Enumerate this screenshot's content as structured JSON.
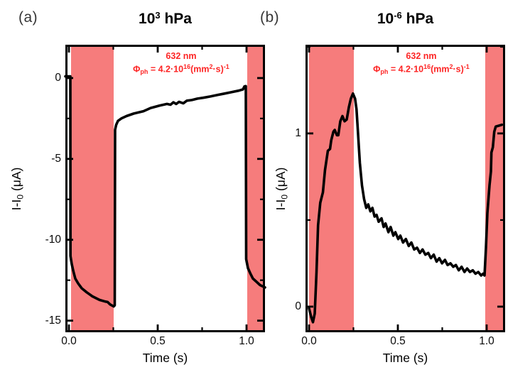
{
  "figure": {
    "background": "#ffffff",
    "panel_labels": [
      "(a)",
      "(b)"
    ]
  },
  "chart_data": [
    {
      "type": "line",
      "panel": "a",
      "title": {
        "base": "10",
        "exp": "3",
        "unit": " hPa"
      },
      "annotation": {
        "line1": "632 nm",
        "phi": "Φ",
        "phi_sub": "ph",
        "eq": " = 4.2·10",
        "exp": "16",
        "par": "(mm",
        "sq": "2",
        "dots": "·s)",
        "inv": "-1",
        "color": "#fd2525"
      },
      "xlabel": "Time (s)",
      "ylabel": {
        "main": "I-I",
        "sub": "0",
        "unit": " (μA)"
      },
      "xlim": [
        -0.02,
        1.104
      ],
      "ylim": [
        -15.72,
        2.06
      ],
      "grid": false,
      "legend": null,
      "xticks": [
        {
          "v": 0.0,
          "label": "0.0"
        },
        {
          "v": 0.5,
          "label": "0.5"
        },
        {
          "v": 1.0,
          "label": "1.0"
        }
      ],
      "xminor": [
        0.25,
        0.75
      ],
      "yticks": [
        {
          "v": 0,
          "label": "0"
        },
        {
          "v": -5,
          "label": "-5"
        },
        {
          "v": -10,
          "label": "-10"
        },
        {
          "v": -15,
          "label": "-15"
        }
      ],
      "yminor": [
        -2.5,
        -7.5,
        -12.5
      ],
      "band_color": "#f67c7c",
      "light_off_bands": [
        [
          0.012,
          0.252
        ],
        [
          1.004,
          1.104
        ]
      ],
      "line_color": "#000000",
      "series": [
        {
          "name": "photocurrent",
          "points": [
            [
              -0.02,
              0.1
            ],
            [
              0.008,
              0.1
            ],
            [
              0.009,
              -11.0
            ],
            [
              0.016,
              -11.5
            ],
            [
              0.024,
              -11.9
            ],
            [
              0.036,
              -12.4
            ],
            [
              0.052,
              -12.7
            ],
            [
              0.072,
              -13.0
            ],
            [
              0.1,
              -13.25
            ],
            [
              0.132,
              -13.5
            ],
            [
              0.172,
              -13.72
            ],
            [
              0.204,
              -13.82
            ],
            [
              0.218,
              -13.85
            ],
            [
              0.232,
              -14.0
            ],
            [
              0.252,
              -14.12
            ],
            [
              0.258,
              -14.05
            ],
            [
              0.26,
              -3.2
            ],
            [
              0.266,
              -2.9
            ],
            [
              0.276,
              -2.65
            ],
            [
              0.295,
              -2.5
            ],
            [
              0.324,
              -2.35
            ],
            [
              0.364,
              -2.2
            ],
            [
              0.42,
              -2.05
            ],
            [
              0.46,
              -1.85
            ],
            [
              0.512,
              -1.7
            ],
            [
              0.552,
              -1.6
            ],
            [
              0.572,
              -1.65
            ],
            [
              0.588,
              -1.5
            ],
            [
              0.604,
              -1.6
            ],
            [
              0.62,
              -1.47
            ],
            [
              0.644,
              -1.56
            ],
            [
              0.664,
              -1.4
            ],
            [
              0.692,
              -1.36
            ],
            [
              0.724,
              -1.27
            ],
            [
              0.756,
              -1.22
            ],
            [
              0.796,
              -1.14
            ],
            [
              0.836,
              -1.05
            ],
            [
              0.876,
              -0.96
            ],
            [
              0.916,
              -0.87
            ],
            [
              0.956,
              -0.78
            ],
            [
              0.98,
              -0.7
            ],
            [
              0.988,
              -0.52
            ],
            [
              0.996,
              -0.5
            ],
            [
              0.998,
              -11.2
            ],
            [
              1.008,
              -11.75
            ],
            [
              1.02,
              -12.05
            ],
            [
              1.036,
              -12.4
            ],
            [
              1.056,
              -12.6
            ],
            [
              1.076,
              -12.8
            ],
            [
              1.104,
              -12.95
            ]
          ]
        }
      ]
    },
    {
      "type": "line",
      "panel": "b",
      "title": {
        "base": "10",
        "exp": "-6",
        "unit": " hPa"
      },
      "annotation": {
        "line1": "632 nm",
        "phi": "Φ",
        "phi_sub": "ph",
        "eq": " = 4.2·10",
        "exp": "16",
        "par": "(mm",
        "sq": "2",
        "dots": "·s)",
        "inv": "-1",
        "color": "#fd2525"
      },
      "xlabel": "Time (s)",
      "ylabel": {
        "main": "I-I",
        "sub": "0",
        "unit": " (μA)"
      },
      "xlim": [
        -0.02,
        1.104
      ],
      "ylim": [
        -0.148,
        1.512
      ],
      "grid": false,
      "legend": null,
      "xticks": [
        {
          "v": 0.0,
          "label": "0.0"
        },
        {
          "v": 0.5,
          "label": "0.5"
        },
        {
          "v": 1.0,
          "label": "1.0"
        }
      ],
      "xminor": [
        0.25,
        0.75
      ],
      "yticks": [
        {
          "v": 0,
          "label": "0"
        },
        {
          "v": 1,
          "label": "1"
        }
      ],
      "yminor": [
        0.5,
        1.5
      ],
      "band_color": "#f67c7c",
      "light_off_bands": [
        [
          0.0,
          0.252
        ],
        [
          0.992,
          1.104
        ]
      ],
      "line_color": "#000000",
      "series": [
        {
          "name": "photocurrent",
          "points": [
            [
              0.0,
              -0.01
            ],
            [
              0.012,
              -0.06
            ],
            [
              0.022,
              -0.09
            ],
            [
              0.032,
              -0.04
            ],
            [
              0.042,
              0.2
            ],
            [
              0.051,
              0.47
            ],
            [
              0.063,
              0.6
            ],
            [
              0.078,
              0.66
            ],
            [
              0.09,
              0.79
            ],
            [
              0.106,
              0.9
            ],
            [
              0.118,
              0.91
            ],
            [
              0.125,
              0.96
            ],
            [
              0.137,
              1.01
            ],
            [
              0.145,
              1.02
            ],
            [
              0.157,
              0.99
            ],
            [
              0.165,
              0.99
            ],
            [
              0.176,
              1.07
            ],
            [
              0.188,
              1.1
            ],
            [
              0.2,
              1.07
            ],
            [
              0.212,
              1.08
            ],
            [
              0.224,
              1.15
            ],
            [
              0.235,
              1.2
            ],
            [
              0.247,
              1.23
            ],
            [
              0.259,
              1.2
            ],
            [
              0.267,
              1.14
            ],
            [
              0.275,
              1.01
            ],
            [
              0.286,
              0.83
            ],
            [
              0.298,
              0.7
            ],
            [
              0.31,
              0.62
            ],
            [
              0.322,
              0.57
            ],
            [
              0.333,
              0.59
            ],
            [
              0.345,
              0.55
            ],
            [
              0.357,
              0.57
            ],
            [
              0.369,
              0.52
            ],
            [
              0.38,
              0.53
            ],
            [
              0.392,
              0.49
            ],
            [
              0.408,
              0.51
            ],
            [
              0.42,
              0.46
            ],
            [
              0.431,
              0.48
            ],
            [
              0.447,
              0.43
            ],
            [
              0.459,
              0.46
            ],
            [
              0.475,
              0.41
            ],
            [
              0.486,
              0.43
            ],
            [
              0.502,
              0.39
            ],
            [
              0.514,
              0.41
            ],
            [
              0.529,
              0.37
            ],
            [
              0.545,
              0.39
            ],
            [
              0.561,
              0.35
            ],
            [
              0.576,
              0.37
            ],
            [
              0.592,
              0.33
            ],
            [
              0.608,
              0.34
            ],
            [
              0.624,
              0.31
            ],
            [
              0.639,
              0.33
            ],
            [
              0.655,
              0.3
            ],
            [
              0.671,
              0.31
            ],
            [
              0.686,
              0.28
            ],
            [
              0.702,
              0.3
            ],
            [
              0.718,
              0.26
            ],
            [
              0.733,
              0.28
            ],
            [
              0.749,
              0.25
            ],
            [
              0.765,
              0.27
            ],
            [
              0.78,
              0.24
            ],
            [
              0.796,
              0.25
            ],
            [
              0.812,
              0.23
            ],
            [
              0.827,
              0.24
            ],
            [
              0.843,
              0.21
            ],
            [
              0.859,
              0.23
            ],
            [
              0.875,
              0.2
            ],
            [
              0.89,
              0.22
            ],
            [
              0.906,
              0.2
            ],
            [
              0.922,
              0.21
            ],
            [
              0.937,
              0.19
            ],
            [
              0.953,
              0.2
            ],
            [
              0.969,
              0.18
            ],
            [
              0.98,
              0.19
            ],
            [
              0.988,
              0.18
            ],
            [
              0.996,
              0.34
            ],
            [
              1.004,
              0.54
            ],
            [
              1.016,
              0.7
            ],
            [
              1.024,
              0.78
            ],
            [
              1.027,
              0.89
            ],
            [
              1.035,
              0.92
            ],
            [
              1.043,
              1.01
            ],
            [
              1.051,
              1.04
            ],
            [
              1.071,
              1.045
            ],
            [
              1.086,
              1.05
            ]
          ]
        }
      ]
    }
  ]
}
